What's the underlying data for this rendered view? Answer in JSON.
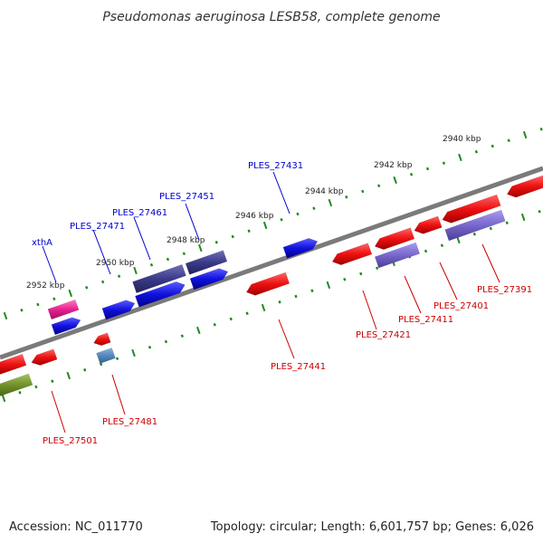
{
  "title": "Pseudomonas aeruginosa LESB58, complete genome",
  "footer": {
    "accession": "Accession: NC_011770",
    "topology": "Topology: circular; Length: 6,601,757 bp; Genes: 6,026"
  },
  "colors": {
    "backbone": "#7a7a7a",
    "tick": "#1f8a1f",
    "forward_label": "#0000cc",
    "reverse_label": "#cc0000",
    "red": "#ee1111",
    "blue": "#1111dd",
    "navy": "#3a3a8a",
    "lavender": "#7766cc",
    "magenta": "#e8208e",
    "olive": "#6f8f2a",
    "steel": "#5588bb"
  },
  "scale_labels": [
    "2940 kbp",
    "2942 kbp",
    "2944 kbp",
    "2946 kbp",
    "2948 kbp",
    "2950 kbp",
    "2952 kbp"
  ],
  "forward_labels": [
    "xthA",
    "PLES_27471",
    "PLES_27461",
    "PLES_27451",
    "PLES_27431"
  ],
  "reverse_labels": [
    "PLES_27501",
    "PLES_27481",
    "PLES_27441",
    "PLES_27421",
    "PLES_27411",
    "PLES_27401",
    "PLES_27391"
  ]
}
